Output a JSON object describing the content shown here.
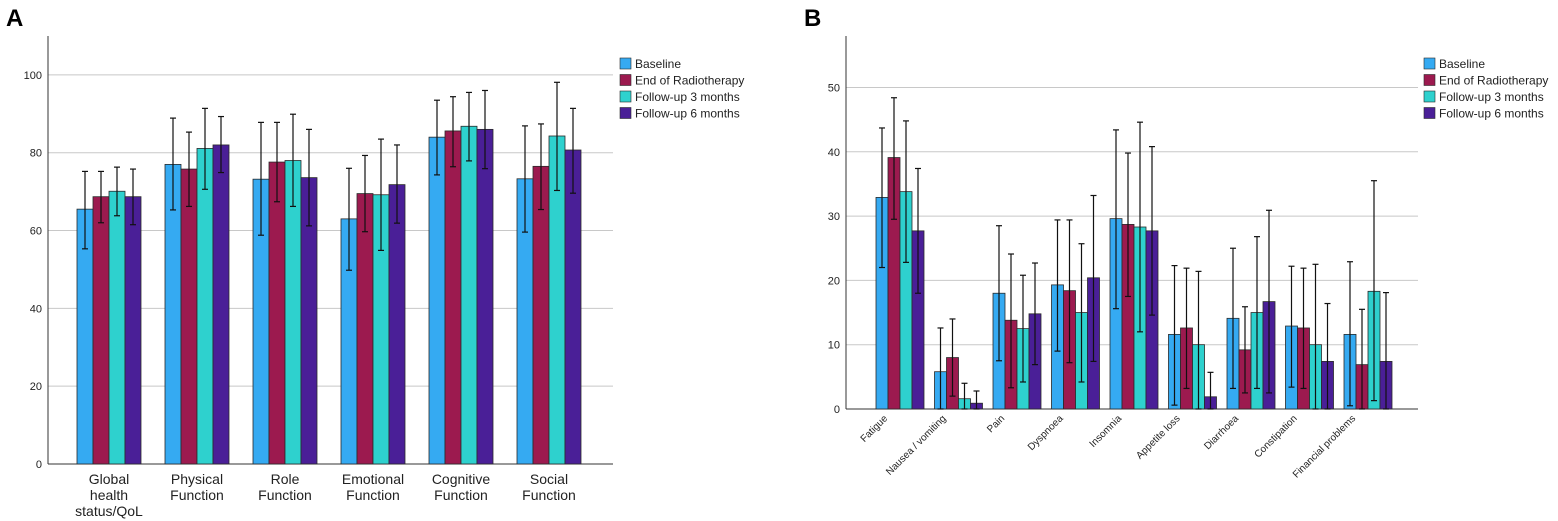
{
  "chart_data": [
    {
      "type": "bar",
      "panel": "A",
      "title": "",
      "xlabel": "",
      "ylabel": "",
      "ylim": [
        0,
        110
      ],
      "yticks": [
        0,
        20,
        40,
        60,
        80,
        100
      ],
      "grid": true,
      "legend": "top-right",
      "categories": [
        [
          "Global",
          "health",
          "status/QoL"
        ],
        [
          "Physical",
          "Function"
        ],
        [
          "Role",
          "Function"
        ],
        [
          "Emotional",
          "Function"
        ],
        [
          "Cognitive",
          "Function"
        ],
        [
          "Social",
          "Function"
        ]
      ],
      "series": [
        {
          "name": "Baseline",
          "color": "#35aaf2",
          "values": [
            65.5,
            77.0,
            73.2,
            63.0,
            84.0,
            73.3
          ],
          "err_low": [
            55.3,
            65.3,
            58.8,
            49.8,
            74.3,
            59.6
          ],
          "err_high": [
            75.2,
            88.9,
            87.8,
            76.0,
            93.5,
            86.9
          ]
        },
        {
          "name": "End of Radiotherapy",
          "color": "#9c1a4f",
          "values": [
            68.7,
            75.8,
            77.6,
            69.5,
            85.6,
            76.5
          ],
          "err_low": [
            62.0,
            66.2,
            67.4,
            59.7,
            76.4,
            65.4
          ],
          "err_high": [
            75.2,
            85.3,
            87.8,
            79.3,
            94.4,
            87.4
          ]
        },
        {
          "name": "Follow-up 3 months",
          "color": "#2ed1ce",
          "values": [
            70.1,
            81.1,
            78.0,
            69.2,
            86.8,
            84.3
          ],
          "err_low": [
            63.8,
            70.6,
            66.2,
            54.9,
            77.9,
            70.3
          ],
          "err_high": [
            76.3,
            91.4,
            89.9,
            83.5,
            95.5,
            98.1
          ]
        },
        {
          "name": "Follow-up 6 months",
          "color": "#4a1f97",
          "values": [
            68.7,
            82.0,
            73.6,
            71.8,
            86.0,
            80.7
          ],
          "err_low": [
            61.5,
            74.9,
            61.2,
            61.9,
            75.9,
            69.6
          ],
          "err_high": [
            75.8,
            89.3,
            86.0,
            82.0,
            96.0,
            91.4
          ]
        }
      ]
    },
    {
      "type": "bar",
      "panel": "B",
      "title": "",
      "xlabel": "",
      "ylabel": "",
      "ylim": [
        0,
        58
      ],
      "yticks": [
        0,
        10,
        20,
        30,
        40,
        50
      ],
      "grid": true,
      "legend": "top-right",
      "categories": [
        "Fatigue",
        "Nausea / vomiting",
        "Pain",
        "Dyspnoea",
        "Insomnia",
        "Appetite loss",
        "Diarrhoea",
        "Constipation",
        "Financial problems"
      ],
      "series": [
        {
          "name": "Baseline",
          "color": "#35aaf2",
          "values": [
            32.9,
            5.8,
            18.0,
            19.3,
            29.6,
            11.6,
            14.1,
            12.9,
            11.6
          ],
          "err_low": [
            22.0,
            0.0,
            7.5,
            9.0,
            15.6,
            0.6,
            3.2,
            3.4,
            0.5
          ],
          "err_high": [
            43.7,
            12.6,
            28.5,
            29.4,
            43.4,
            22.3,
            25.0,
            22.2,
            22.9
          ]
        },
        {
          "name": "End of Radiotherapy",
          "color": "#9c1a4f",
          "values": [
            39.1,
            8.0,
            13.8,
            18.4,
            28.7,
            12.6,
            9.2,
            12.6,
            6.9
          ],
          "err_low": [
            29.5,
            2.0,
            3.3,
            7.2,
            17.5,
            3.2,
            2.5,
            3.2,
            0.0
          ],
          "err_high": [
            48.4,
            14.0,
            24.1,
            29.4,
            39.8,
            21.9,
            15.9,
            21.9,
            15.5
          ]
        },
        {
          "name": "Follow-up 3 months",
          "color": "#2ed1ce",
          "values": [
            33.8,
            1.6,
            12.5,
            15.0,
            28.3,
            10.0,
            15.0,
            10.0,
            18.3
          ],
          "err_low": [
            22.8,
            0.0,
            4.2,
            4.2,
            12.0,
            0.0,
            3.2,
            0.0,
            1.3
          ],
          "err_high": [
            44.8,
            4.0,
            20.8,
            25.7,
            44.6,
            21.4,
            26.8,
            22.5,
            35.5
          ]
        },
        {
          "name": "Follow-up 6 months",
          "color": "#4a1f97",
          "values": [
            27.7,
            0.9,
            14.8,
            20.4,
            27.7,
            1.9,
            16.7,
            7.4,
            7.4
          ],
          "err_low": [
            18.0,
            0.0,
            6.9,
            7.4,
            14.6,
            0.0,
            2.5,
            0.0,
            0.0
          ],
          "err_high": [
            37.4,
            2.8,
            22.7,
            33.2,
            40.8,
            5.7,
            30.9,
            16.4,
            18.1
          ]
        }
      ]
    }
  ]
}
